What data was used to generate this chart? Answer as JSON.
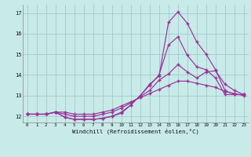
{
  "xlabel": "Windchill (Refroidissement éolien,°C)",
  "ylabel": "",
  "xlim": [
    -0.5,
    23.5
  ],
  "ylim": [
    11.7,
    17.4
  ],
  "xticks": [
    0,
    1,
    2,
    3,
    4,
    5,
    6,
    7,
    8,
    9,
    10,
    11,
    12,
    13,
    14,
    15,
    16,
    17,
    18,
    19,
    20,
    21,
    22,
    23
  ],
  "yticks": [
    12,
    13,
    14,
    15,
    16,
    17
  ],
  "background_color": "#c8eae8",
  "grid_color": "#a0cccc",
  "line_color": "#993399",
  "lines": [
    [
      12.1,
      12.1,
      12.1,
      12.2,
      11.95,
      11.85,
      11.85,
      11.85,
      11.9,
      12.0,
      12.15,
      12.55,
      13.0,
      13.55,
      13.95,
      16.55,
      17.05,
      16.5,
      15.6,
      15.0,
      14.25,
      13.25,
      13.05,
      13.05
    ],
    [
      12.1,
      12.1,
      12.1,
      12.2,
      11.95,
      11.85,
      11.85,
      11.85,
      11.9,
      12.0,
      12.2,
      12.55,
      13.0,
      13.5,
      14.0,
      15.45,
      15.85,
      14.95,
      14.4,
      14.25,
      13.85,
      13.05,
      13.05,
      13.05
    ],
    [
      12.1,
      12.1,
      12.1,
      12.2,
      12.1,
      12.0,
      12.0,
      12.0,
      12.1,
      12.2,
      12.4,
      12.65,
      12.95,
      13.25,
      13.75,
      14.05,
      14.5,
      14.15,
      13.85,
      14.15,
      14.2,
      13.55,
      13.25,
      13.05
    ],
    [
      12.1,
      12.1,
      12.1,
      12.2,
      12.2,
      12.1,
      12.1,
      12.1,
      12.2,
      12.3,
      12.5,
      12.7,
      12.9,
      13.1,
      13.3,
      13.5,
      13.7,
      13.7,
      13.6,
      13.5,
      13.4,
      13.2,
      13.1,
      13.0
    ]
  ]
}
